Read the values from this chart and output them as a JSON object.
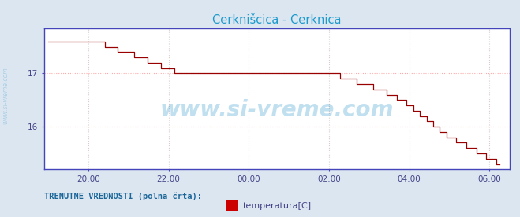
{
  "title": "Cerknišcica - Cerknica",
  "title_color": "#1a9acd",
  "bg_color": "#dce6f0",
  "plot_bg_color": "#ffffff",
  "line_color": "#990000",
  "grid_color_h": "#ffaaaa",
  "grid_color_v": "#ddcccc",
  "grid_style": ":",
  "axis_color": "#4444bb",
  "tick_color": "#444488",
  "watermark_text": "www.si-vreme.com",
  "watermark_color": "#3399cc",
  "watermark_alpha": 0.3,
  "left_text": "www.si-vreme.com",
  "left_text_color": "#3399cc",
  "bottom_label": "TRENUTNE VREDNOSTI (polna črta):",
  "bottom_label_color": "#1a6699",
  "legend_label": "temperatura[C]",
  "legend_color": "#cc0000",
  "ylim": [
    15.2,
    17.85
  ],
  "yticks": [
    16,
    17
  ],
  "xlim": [
    -5.1,
    6.5
  ],
  "xtick_labels": [
    "20:00",
    "22:00",
    "00:00",
    "02:00",
    "04:00",
    "06:00"
  ],
  "xtick_positions": [
    -4,
    -2,
    0,
    2,
    4,
    6
  ],
  "temp_data": [
    17.6,
    17.6,
    17.6,
    17.6,
    17.6,
    17.6,
    17.6,
    17.6,
    17.6,
    17.6,
    17.6,
    17.6,
    17.6,
    17.6,
    17.6,
    17.6,
    17.6,
    17.5,
    17.5,
    17.5,
    17.5,
    17.4,
    17.4,
    17.4,
    17.4,
    17.4,
    17.3,
    17.3,
    17.3,
    17.3,
    17.2,
    17.2,
    17.2,
    17.2,
    17.1,
    17.1,
    17.1,
    17.1,
    17.0,
    17.0,
    17.0,
    17.0,
    17.0,
    17.0,
    17.0,
    17.0,
    17.0,
    17.0,
    17.0,
    17.0,
    17.0,
    17.0,
    17.0,
    17.0,
    17.0,
    17.0,
    17.0,
    17.0,
    17.0,
    17.0,
    17.0,
    17.0,
    17.0,
    17.0,
    17.0,
    17.0,
    17.0,
    17.0,
    17.0,
    17.0,
    17.0,
    17.0,
    17.0,
    17.0,
    17.0,
    17.0,
    17.0,
    17.0,
    17.0,
    17.0,
    17.0,
    17.0,
    17.0,
    17.0,
    17.0,
    17.0,
    17.0,
    17.0,
    16.9,
    16.9,
    16.9,
    16.9,
    16.9,
    16.8,
    16.8,
    16.8,
    16.8,
    16.8,
    16.7,
    16.7,
    16.7,
    16.7,
    16.6,
    16.6,
    16.6,
    16.5,
    16.5,
    16.5,
    16.4,
    16.4,
    16.3,
    16.3,
    16.2,
    16.2,
    16.1,
    16.1,
    16.0,
    16.0,
    15.9,
    15.9,
    15.8,
    15.8,
    15.8,
    15.7,
    15.7,
    15.7,
    15.6,
    15.6,
    15.6,
    15.5,
    15.5,
    15.5,
    15.4,
    15.4,
    15.4,
    15.3,
    15.3
  ]
}
